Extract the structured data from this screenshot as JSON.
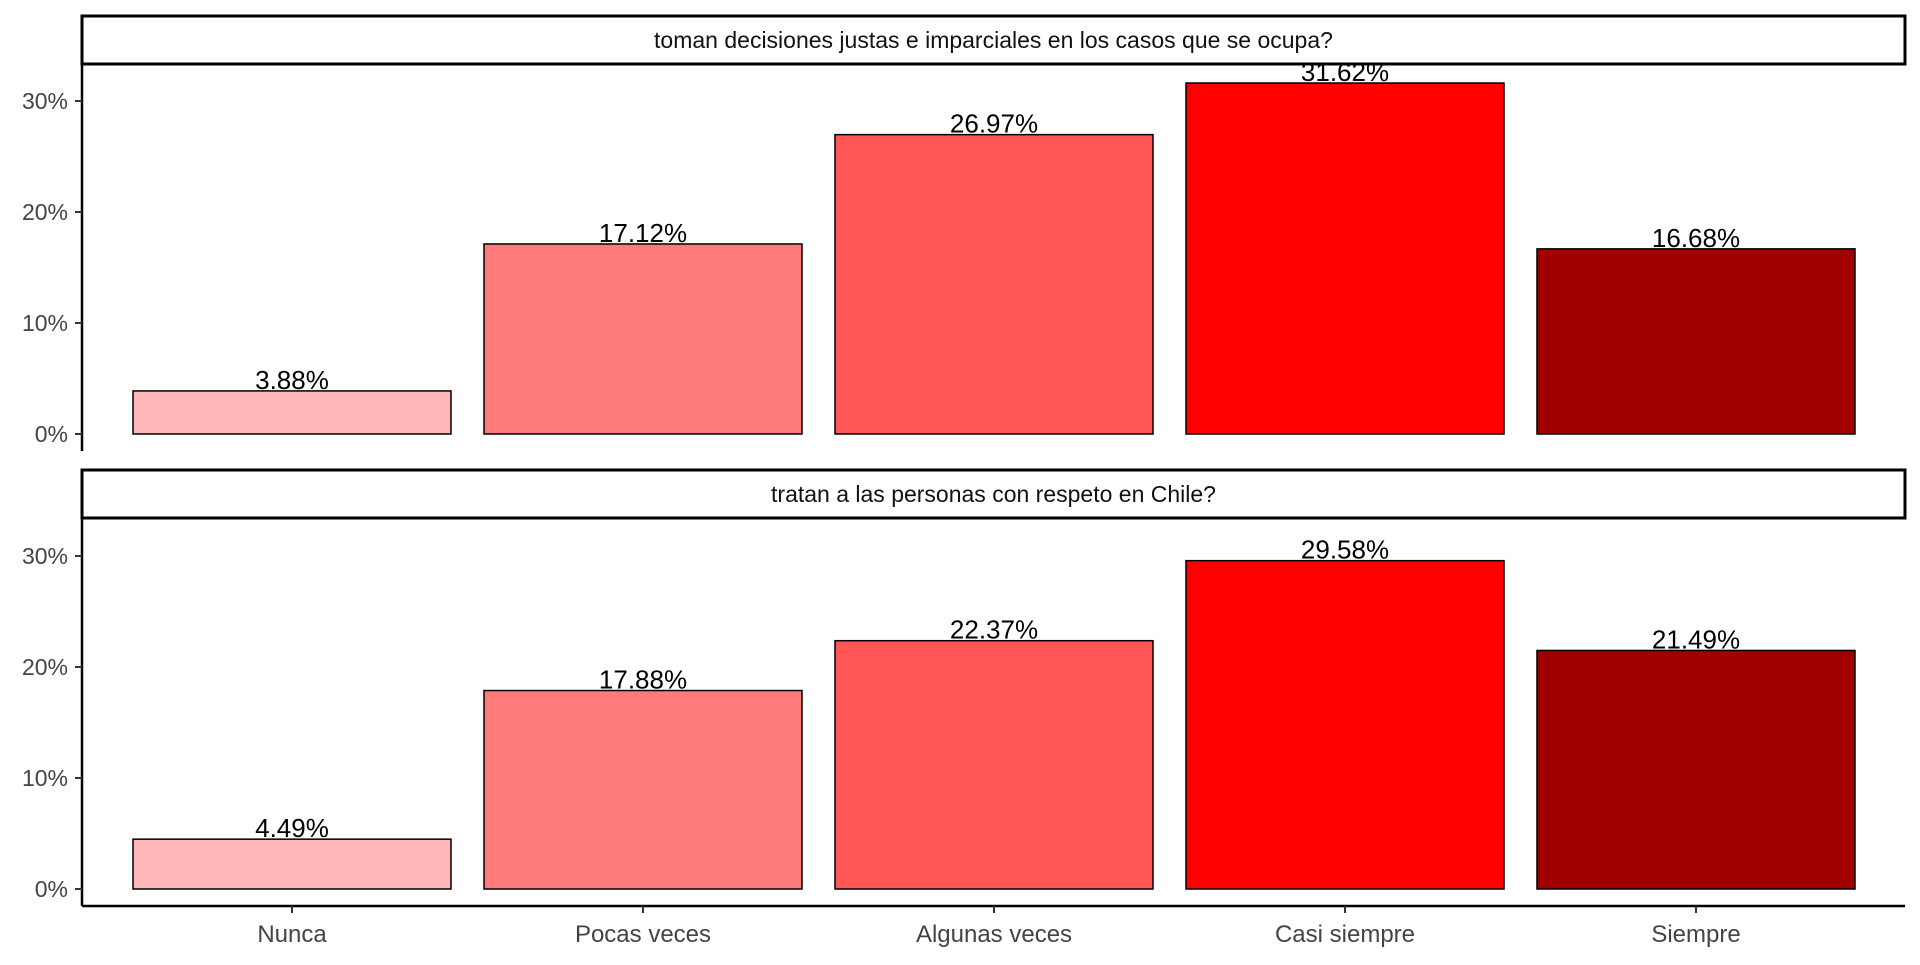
{
  "chart_data": {
    "type": "bar",
    "categories": [
      "Nunca",
      "Pocas veces",
      "Algunas veces",
      "Casi siempre",
      "Siempre"
    ],
    "colors": [
      "#ffb6b6",
      "#ff7b7b",
      "#ff5555",
      "#ff0000",
      "#a10000"
    ],
    "ylim": [
      0,
      33
    ],
    "yticks": [
      0,
      10,
      20,
      30
    ],
    "ytick_labels": [
      "0%",
      "10%",
      "20%",
      "30%"
    ],
    "grid": false,
    "panels": [
      {
        "title": "toman decisiones justas e imparciales en los casos que se ocupa?",
        "values": [
          3.88,
          17.12,
          26.97,
          31.62,
          16.68
        ],
        "labels": [
          "3.88%",
          "17.12%",
          "26.97%",
          "31.62%",
          "16.68%"
        ]
      },
      {
        "title": "tratan a las personas con respeto en Chile?",
        "values": [
          4.49,
          17.88,
          22.37,
          29.58,
          21.49
        ],
        "labels": [
          "4.49%",
          "17.88%",
          "22.37%",
          "29.58%",
          "21.49%"
        ]
      }
    ]
  }
}
